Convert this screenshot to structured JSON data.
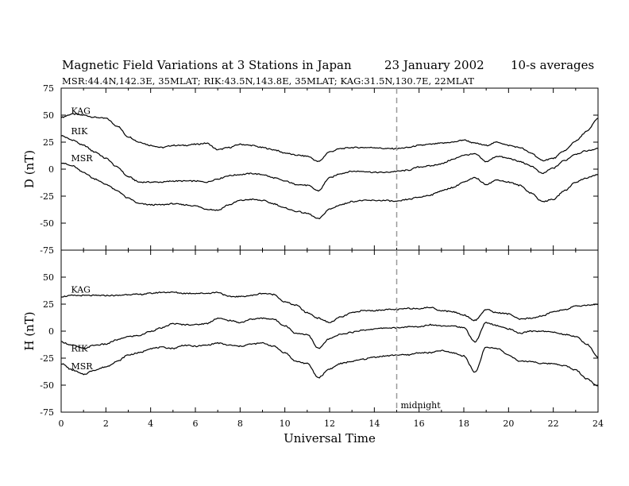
{
  "header": {
    "title_main": "Magnetic Field Variations at 3 Stations in Japan",
    "title_date": "23 January 2002",
    "title_avg": "10-s averages",
    "subtitle": "MSR:44.4N,142.3E, 35MLAT;  RIK:43.5N,143.8E, 35MLAT;  KAG:31.5N,130.7E, 22MLAT"
  },
  "chart_data": [
    {
      "type": "line",
      "panel": "D",
      "ylabel": "D (nT)",
      "ylim": [
        -75,
        75
      ],
      "yticks": [
        -75,
        -50,
        -25,
        0,
        25,
        50,
        75
      ],
      "xlim": [
        0,
        24
      ],
      "series": [
        {
          "name": "KAG",
          "x": [
            0,
            0.5,
            1,
            1.5,
            2,
            2.5,
            3,
            3.5,
            4,
            4.5,
            5,
            5.5,
            6,
            6.5,
            7,
            7.5,
            8,
            8.5,
            9,
            9.5,
            10,
            10.5,
            11,
            11.5,
            12,
            12.5,
            13,
            13.5,
            14,
            14.5,
            15,
            15.5,
            16,
            16.5,
            17,
            17.5,
            18,
            18.5,
            19,
            19.5,
            20,
            20.5,
            21,
            21.5,
            22,
            22.5,
            23,
            23.5,
            24
          ],
          "values": [
            48,
            51,
            50,
            48,
            47,
            40,
            30,
            25,
            22,
            20,
            22,
            22,
            23,
            24,
            18,
            20,
            23,
            22,
            20,
            18,
            15,
            13,
            12,
            7,
            16,
            19,
            20,
            20,
            20,
            19,
            19,
            20,
            22,
            23,
            24,
            25,
            27,
            24,
            22,
            25,
            22,
            20,
            15,
            8,
            10,
            17,
            26,
            35,
            47
          ]
        },
        {
          "name": "RIK",
          "x": [
            0,
            0.5,
            1,
            1.5,
            2,
            2.5,
            3,
            3.5,
            4,
            4.5,
            5,
            5.5,
            6,
            6.5,
            7,
            7.5,
            8,
            8.5,
            9,
            9.5,
            10,
            10.5,
            11,
            11.5,
            12,
            12.5,
            13,
            13.5,
            14,
            14.5,
            15,
            15.5,
            16,
            16.5,
            17,
            17.5,
            18,
            18.5,
            19,
            19.5,
            20,
            20.5,
            21,
            21.5,
            22,
            22.5,
            23,
            23.5,
            24
          ],
          "values": [
            31,
            27,
            22,
            16,
            10,
            2,
            -7,
            -12,
            -12,
            -12,
            -11,
            -11,
            -11,
            -12,
            -9,
            -6,
            -5,
            -4,
            -5,
            -8,
            -11,
            -14,
            -15,
            -20,
            -8,
            -4,
            -2,
            -2,
            -3,
            -3,
            -2,
            -1,
            2,
            3,
            5,
            9,
            13,
            14,
            7,
            12,
            10,
            7,
            3,
            -4,
            1,
            8,
            14,
            17,
            19
          ]
        },
        {
          "name": "MSR",
          "x": [
            0,
            0.5,
            1,
            1.5,
            2,
            2.5,
            3,
            3.5,
            4,
            4.5,
            5,
            5.5,
            6,
            6.5,
            7,
            7.5,
            8,
            8.5,
            9,
            9.5,
            10,
            10.5,
            11,
            11.5,
            12,
            12.5,
            13,
            13.5,
            14,
            14.5,
            15,
            15.5,
            16,
            16.5,
            17,
            17.5,
            18,
            18.5,
            19,
            19.5,
            20,
            20.5,
            21,
            21.5,
            22,
            22.5,
            23,
            23.5,
            24
          ],
          "values": [
            6,
            3,
            -3,
            -9,
            -14,
            -20,
            -27,
            -32,
            -33,
            -33,
            -32,
            -33,
            -34,
            -37,
            -38,
            -33,
            -29,
            -28,
            -29,
            -32,
            -36,
            -39,
            -41,
            -46,
            -37,
            -33,
            -30,
            -29,
            -29,
            -29,
            -30,
            -28,
            -26,
            -24,
            -20,
            -17,
            -12,
            -8,
            -14,
            -10,
            -12,
            -15,
            -22,
            -30,
            -28,
            -20,
            -12,
            -8,
            -5
          ]
        }
      ]
    },
    {
      "type": "line",
      "panel": "H",
      "ylabel": "H (nT)",
      "xlabel": "Universal Time",
      "ylim": [
        -75,
        75
      ],
      "yticks": [
        -75,
        -50,
        -25,
        0,
        25,
        50
      ],
      "xlim": [
        0,
        24
      ],
      "xticks": [
        0,
        2,
        4,
        6,
        8,
        10,
        12,
        14,
        16,
        18,
        20,
        22,
        24
      ],
      "annotations": [
        {
          "text": "midnight",
          "x": 15
        }
      ],
      "series": [
        {
          "name": "KAG",
          "x": [
            0,
            0.5,
            1,
            1.5,
            2,
            2.5,
            3,
            3.5,
            4,
            4.5,
            5,
            5.5,
            6,
            6.5,
            7,
            7.5,
            8,
            8.5,
            9,
            9.5,
            10,
            10.5,
            11,
            11.5,
            12,
            12.5,
            13,
            13.5,
            14,
            14.5,
            15,
            15.5,
            16,
            16.5,
            17,
            17.5,
            18,
            18.5,
            19,
            19.5,
            20,
            20.5,
            21,
            21.5,
            22,
            22.5,
            23,
            23.5,
            24
          ],
          "values": [
            32,
            33,
            33,
            33,
            33,
            33,
            34,
            34,
            35,
            36,
            36,
            35,
            35,
            35,
            36,
            32,
            32,
            33,
            35,
            34,
            27,
            24,
            17,
            12,
            8,
            13,
            17,
            19,
            19,
            20,
            20,
            21,
            21,
            22,
            19,
            18,
            15,
            10,
            20,
            17,
            16,
            11,
            12,
            14,
            18,
            20,
            23,
            24,
            25
          ]
        },
        {
          "name": "RIK",
          "x": [
            0,
            0.5,
            1,
            1.5,
            2,
            2.5,
            3,
            3.5,
            4,
            4.5,
            5,
            5.5,
            6,
            6.5,
            7,
            7.5,
            8,
            8.5,
            9,
            9.5,
            10,
            10.5,
            11,
            11.5,
            12,
            12.5,
            13,
            13.5,
            14,
            14.5,
            15,
            15.5,
            16,
            16.5,
            17,
            17.5,
            18,
            18.5,
            19,
            19.5,
            20,
            20.5,
            21,
            21.5,
            22,
            22.5,
            23,
            23.5,
            24
          ],
          "values": [
            -10,
            -13,
            -16,
            -13,
            -12,
            -8,
            -5,
            -4,
            0,
            3,
            7,
            6,
            6,
            7,
            12,
            10,
            8,
            11,
            12,
            11,
            5,
            -2,
            -3,
            -16,
            -7,
            -3,
            -1,
            1,
            2,
            3,
            3,
            4,
            4,
            6,
            5,
            5,
            3,
            -10,
            8,
            5,
            2,
            -2,
            0,
            0,
            -1,
            -3,
            -5,
            -12,
            -24
          ]
        },
        {
          "name": "MSR",
          "x": [
            0,
            0.5,
            1,
            1.5,
            2,
            2.5,
            3,
            3.5,
            4,
            4.5,
            5,
            5.5,
            6,
            6.5,
            7,
            7.5,
            8,
            8.5,
            9,
            9.5,
            10,
            10.5,
            11,
            11.5,
            12,
            12.5,
            13,
            13.5,
            14,
            14.5,
            15,
            15.5,
            16,
            16.5,
            17,
            17.5,
            18,
            18.5,
            19,
            19.5,
            20,
            20.5,
            21,
            21.5,
            22,
            22.5,
            23,
            23.5,
            24
          ],
          "values": [
            -30,
            -36,
            -40,
            -36,
            -33,
            -28,
            -22,
            -20,
            -16,
            -15,
            -16,
            -13,
            -14,
            -13,
            -11,
            -13,
            -14,
            -12,
            -11,
            -14,
            -20,
            -28,
            -30,
            -43,
            -35,
            -30,
            -28,
            -26,
            -24,
            -23,
            -22,
            -22,
            -20,
            -20,
            -18,
            -20,
            -23,
            -38,
            -15,
            -16,
            -22,
            -28,
            -28,
            -30,
            -30,
            -32,
            -36,
            -44,
            -51
          ]
        }
      ]
    }
  ]
}
